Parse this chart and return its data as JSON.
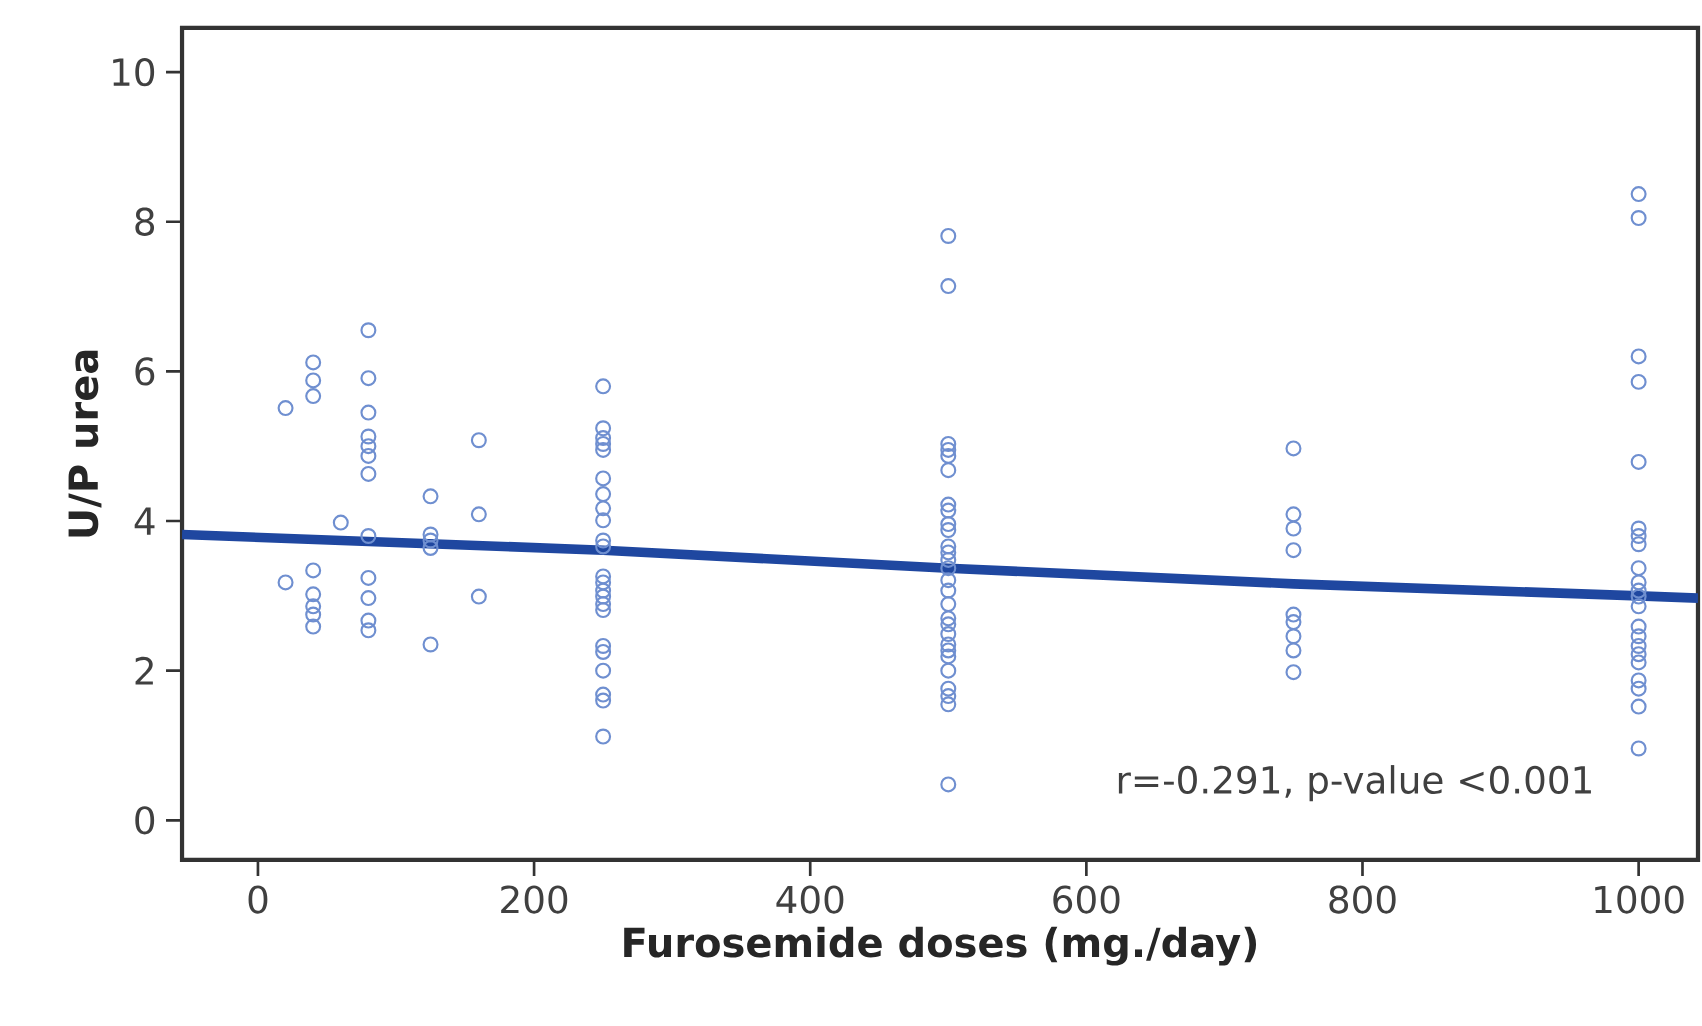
{
  "chart_data": {
    "type": "scatter",
    "xlabel": "Furosemide doses (mg./day)",
    "ylabel": "U/P urea",
    "xlim": [
      -55,
      1043
    ],
    "ylim": [
      -0.53,
      10.59
    ],
    "xticks": [
      0,
      200,
      400,
      600,
      800,
      1000
    ],
    "yticks": [
      0,
      2,
      4,
      6,
      8,
      10
    ],
    "grid": false,
    "marker": "circle",
    "series": [
      {
        "color": "#6f8fd0",
        "x": [
          20,
          20,
          40,
          40,
          40,
          40,
          40,
          40,
          40,
          40,
          60,
          80,
          80,
          80,
          80,
          80,
          80,
          80,
          80,
          80,
          80,
          80,
          80,
          125,
          125,
          125,
          125,
          125,
          160,
          160,
          160,
          250,
          250,
          250,
          250,
          250,
          250,
          250,
          250,
          250,
          250,
          250,
          250,
          250,
          250,
          250,
          250,
          250,
          250,
          250,
          250,
          250,
          250,
          250,
          500,
          500,
          500,
          500,
          500,
          500,
          500,
          500,
          500,
          500,
          500,
          500,
          500,
          500,
          500,
          500,
          500,
          500,
          500,
          500,
          500,
          500,
          500,
          500,
          500,
          500,
          500,
          500,
          750,
          750,
          750,
          750,
          750,
          750,
          750,
          750,
          750,
          1000,
          1000,
          1000,
          1000,
          1000,
          1000,
          1000,
          1000,
          1000,
          1000,
          1000,
          1000,
          1000,
          1000,
          1000,
          1000,
          1000,
          1000,
          1000,
          1000,
          1000,
          1000
        ],
        "values": [
          5.51,
          3.18,
          6.12,
          5.88,
          5.67,
          3.34,
          3.02,
          2.86,
          2.75,
          2.59,
          3.98,
          6.55,
          5.91,
          5.45,
          5.13,
          5.0,
          4.87,
          4.63,
          3.8,
          3.24,
          2.97,
          2.67,
          2.54,
          4.33,
          3.82,
          3.74,
          3.64,
          2.35,
          5.08,
          4.09,
          2.99,
          5.8,
          5.24,
          5.11,
          5.03,
          4.95,
          4.57,
          4.36,
          4.17,
          4.01,
          3.74,
          3.66,
          3.26,
          3.18,
          3.07,
          2.99,
          2.89,
          2.81,
          2.33,
          2.25,
          2.0,
          1.68,
          1.6,
          1.12,
          7.81,
          7.14,
          5.03,
          4.95,
          4.87,
          4.68,
          4.22,
          4.14,
          3.96,
          3.88,
          3.66,
          3.58,
          3.48,
          3.37,
          3.21,
          3.07,
          2.89,
          2.7,
          2.62,
          2.49,
          2.35,
          2.27,
          2.19,
          2.0,
          1.76,
          1.66,
          1.55,
          0.48,
          4.97,
          4.09,
          3.9,
          3.61,
          2.75,
          2.65,
          2.46,
          2.27,
          1.98,
          8.37,
          8.05,
          6.2,
          5.86,
          4.79,
          3.9,
          3.8,
          3.69,
          3.37,
          3.18,
          3.07,
          2.99,
          2.86,
          2.59,
          2.46,
          2.33,
          2.22,
          2.11,
          1.87,
          1.76,
          1.52,
          0.96
        ]
      },
      {
        "type": "line",
        "color": "#1f47a0",
        "marker": "none",
        "x": [
          -55,
          250,
          500,
          750,
          1000,
          1043
        ],
        "values": [
          3.82,
          3.61,
          3.37,
          3.16,
          3.0,
          2.97
        ]
      }
    ],
    "annotations": [
      "r=-0.291, p-value <0.001"
    ]
  }
}
